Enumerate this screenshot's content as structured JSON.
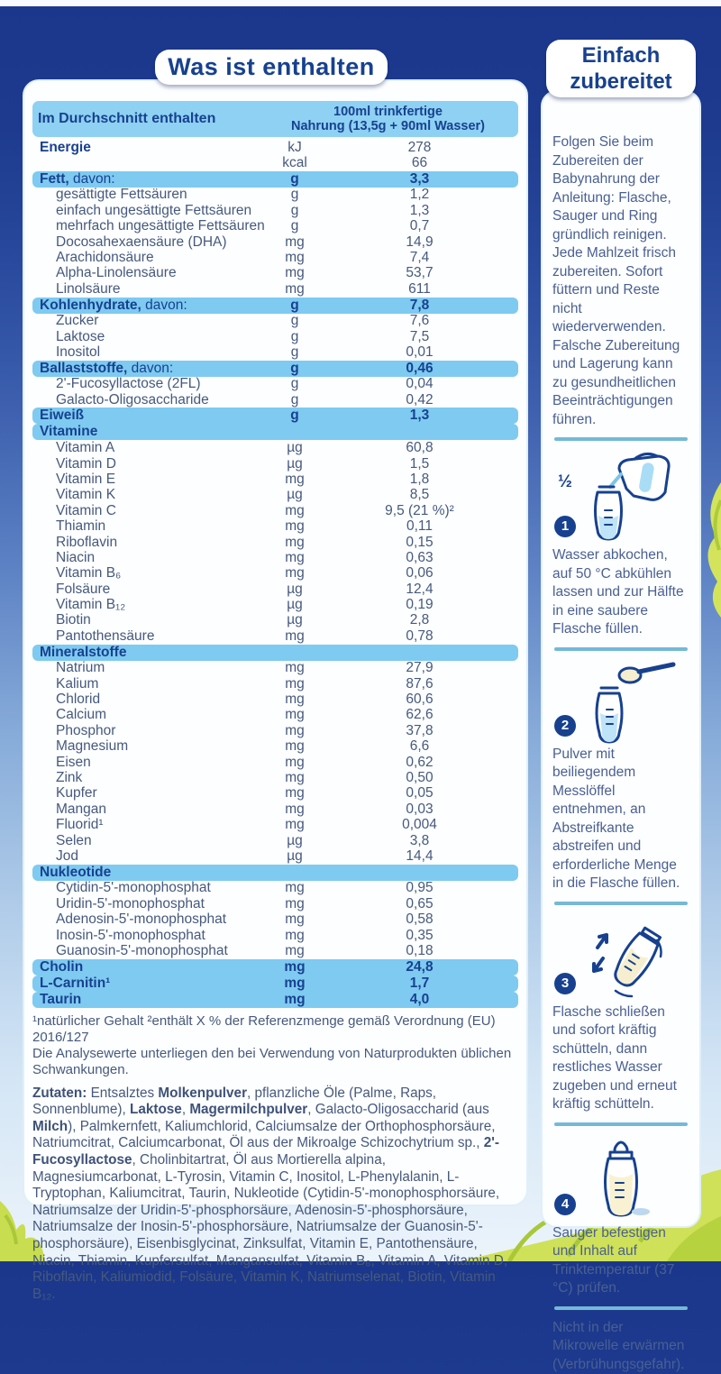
{
  "titles": {
    "left": "Was ist enthalten",
    "right_line1": "Einfach",
    "right_line2": "zubereitet"
  },
  "colors": {
    "brand_navy": "#17418f",
    "header_bar": "#8ed1f3",
    "section_bar": "#7ecaf1",
    "body_text": "#46597d",
    "divider": "#74b9d6",
    "grass_green": "#c3d845",
    "background_top": "#1b378b"
  },
  "table": {
    "header": {
      "col_label": "Im Durchschnitt enthalten",
      "col_value_line1": "100ml trinkfertige",
      "col_value_line2": "Nahrung (13,5g + 90ml Wasser)"
    },
    "rows": [
      {
        "style": "plain",
        "label_bold": "Energie",
        "unit": "kJ",
        "value": "278"
      },
      {
        "style": "plain",
        "label": "",
        "unit": "kcal",
        "value": "66"
      },
      {
        "style": "section",
        "label_bold": "Fett,",
        "label_rest": " davon:",
        "unit": "g",
        "value": "3,3"
      },
      {
        "style": "sub",
        "label": "gesättigte Fettsäuren",
        "unit": "g",
        "value": "1,2"
      },
      {
        "style": "sub",
        "label": "einfach ungesättigte Fettsäuren",
        "unit": "g",
        "value": "1,3"
      },
      {
        "style": "sub",
        "label": "mehrfach ungesättigte Fettsäuren",
        "unit": "g",
        "value": "0,7"
      },
      {
        "style": "sub",
        "label": "Docosahexaensäure (DHA)",
        "unit": "mg",
        "value": "14,9"
      },
      {
        "style": "sub",
        "label": "Arachidonsäure",
        "unit": "mg",
        "value": "7,4"
      },
      {
        "style": "sub",
        "label": "Alpha-Linolensäure",
        "unit": "mg",
        "value": "53,7"
      },
      {
        "style": "sub",
        "label": "Linolsäure",
        "unit": "mg",
        "value": "611"
      },
      {
        "style": "section",
        "label_bold": "Kohlenhydrate,",
        "label_rest": " davon:",
        "unit": "g",
        "value": "7,8"
      },
      {
        "style": "sub",
        "label": "Zucker",
        "unit": "g",
        "value": "7,6"
      },
      {
        "style": "sub",
        "label": "Laktose",
        "unit": "g",
        "value": "7,5"
      },
      {
        "style": "sub",
        "label": "Inositol",
        "unit": "g",
        "value": "0,01"
      },
      {
        "style": "section",
        "label_bold": "Ballaststoffe,",
        "label_rest": " davon:",
        "unit": "g",
        "value": "0,46"
      },
      {
        "style": "sub",
        "label": "2'-Fucosyllactose (2FL)",
        "unit": "g",
        "value": "0,04"
      },
      {
        "style": "sub",
        "label": "Galacto-Oligosaccharide",
        "unit": "g",
        "value": "0,42"
      },
      {
        "style": "section",
        "label_bold": "Eiweiß",
        "unit": "g",
        "value": "1,3"
      },
      {
        "style": "section",
        "label_bold": "Vitamine",
        "unit": "",
        "value": ""
      },
      {
        "style": "sub",
        "label": "Vitamin A",
        "unit": "µg",
        "value": "60,8"
      },
      {
        "style": "sub",
        "label": "Vitamin D",
        "unit": "µg",
        "value": "1,5"
      },
      {
        "style": "sub",
        "label": "Vitamin E",
        "unit": "mg",
        "value": "1,8"
      },
      {
        "style": "sub",
        "label": "Vitamin K",
        "unit": "µg",
        "value": "8,5"
      },
      {
        "style": "sub",
        "label": "Vitamin C",
        "unit": "mg",
        "value": "9,5 (21 %)²"
      },
      {
        "style": "sub",
        "label": "Thiamin",
        "unit": "mg",
        "value": "0,11"
      },
      {
        "style": "sub",
        "label": "Riboflavin",
        "unit": "mg",
        "value": "0,15"
      },
      {
        "style": "sub",
        "label": "Niacin",
        "unit": "mg",
        "value": "0,63"
      },
      {
        "style": "sub",
        "label": "Vitamin B₆",
        "unit": "mg",
        "value": "0,06"
      },
      {
        "style": "sub",
        "label": "Folsäure",
        "unit": "µg",
        "value": "12,4"
      },
      {
        "style": "sub",
        "label": "Vitamin B₁₂",
        "unit": "µg",
        "value": "0,19"
      },
      {
        "style": "sub",
        "label": "Biotin",
        "unit": "µg",
        "value": "2,8"
      },
      {
        "style": "sub",
        "label": "Pantothensäure",
        "unit": "mg",
        "value": "0,78"
      },
      {
        "style": "section",
        "label_bold": "Mineralstoffe",
        "unit": "",
        "value": ""
      },
      {
        "style": "sub",
        "label": "Natrium",
        "unit": "mg",
        "value": "27,9"
      },
      {
        "style": "sub",
        "label": "Kalium",
        "unit": "mg",
        "value": "87,6"
      },
      {
        "style": "sub",
        "label": "Chlorid",
        "unit": "mg",
        "value": "60,6"
      },
      {
        "style": "sub",
        "label": "Calcium",
        "unit": "mg",
        "value": "62,6"
      },
      {
        "style": "sub",
        "label": "Phosphor",
        "unit": "mg",
        "value": "37,8"
      },
      {
        "style": "sub",
        "label": "Magnesium",
        "unit": "mg",
        "value": "6,6"
      },
      {
        "style": "sub",
        "label": "Eisen",
        "unit": "mg",
        "value": "0,62"
      },
      {
        "style": "sub",
        "label": "Zink",
        "unit": "mg",
        "value": "0,50"
      },
      {
        "style": "sub",
        "label": "Kupfer",
        "unit": "mg",
        "value": "0,05"
      },
      {
        "style": "sub",
        "label": "Mangan",
        "unit": "mg",
        "value": "0,03"
      },
      {
        "style": "sub",
        "label": "Fluorid¹",
        "unit": "mg",
        "value": "0,004"
      },
      {
        "style": "sub",
        "label": "Selen",
        "unit": "µg",
        "value": "3,8"
      },
      {
        "style": "sub",
        "label": "Jod",
        "unit": "µg",
        "value": "14,4"
      },
      {
        "style": "section",
        "label_bold": "Nukleotide",
        "unit": "",
        "value": ""
      },
      {
        "style": "sub",
        "label": "Cytidin-5'-monophosphat",
        "unit": "mg",
        "value": "0,95"
      },
      {
        "style": "sub",
        "label": "Uridin-5'-monophosphat",
        "unit": "mg",
        "value": "0,65"
      },
      {
        "style": "sub",
        "label": "Adenosin-5'-monophosphat",
        "unit": "mg",
        "value": "0,58"
      },
      {
        "style": "sub",
        "label": "Inosin-5'-monophosphat",
        "unit": "mg",
        "value": "0,35"
      },
      {
        "style": "sub",
        "label": "Guanosin-5'-monophosphat",
        "unit": "mg",
        "value": "0,18"
      },
      {
        "style": "section",
        "label_bold": "Cholin",
        "unit": "mg",
        "value": "24,8"
      },
      {
        "style": "section",
        "label_bold": "L-Carnitin¹",
        "unit": "mg",
        "value": "1,7"
      },
      {
        "style": "section",
        "label_bold": "Taurin",
        "unit": "mg",
        "value": "4,0"
      }
    ]
  },
  "footnotes": {
    "line1": "¹natürlicher Gehalt  ²enthält X % der Referenzmenge gemäß Verordnung (EU) 2016/127",
    "line2": "Die Analysewerte unterliegen den bei Verwendung von Naturprodukten üblichen Schwankungen."
  },
  "ingredients": {
    "segments": [
      {
        "text": "Zutaten: ",
        "bold": true
      },
      {
        "text": "Entsalztes ",
        "bold": false
      },
      {
        "text": "Molkenpulver",
        "bold": true
      },
      {
        "text": ", pflanzliche Öle (Palme, Raps, Sonnenblume), ",
        "bold": false
      },
      {
        "text": "Laktose",
        "bold": true
      },
      {
        "text": ", ",
        "bold": false
      },
      {
        "text": "Magermilchpulver",
        "bold": true
      },
      {
        "text": ", Galacto-Oligosaccharid (aus ",
        "bold": false
      },
      {
        "text": "Milch",
        "bold": true
      },
      {
        "text": "), Palmkernfett, Kaliumchlorid, Calciumsalze der Orthophosphorsäure, Natriumcitrat, Calciumcarbonat, Öl aus der Mikroalge Schizochytrium sp., ",
        "bold": false
      },
      {
        "text": "2'-Fucosyllactose",
        "bold": true
      },
      {
        "text": ", Cholinbitartrat, Öl aus Mortierella alpina, Magnesiumcarbonat, L-Tyrosin, Vitamin C, Inositol, L-Phenylalanin, L-Tryptophan, Kaliumcitrat, Taurin, Nukleotide (Cytidin-5'-monophosphorsäure, Natriumsalze der Uridin-5'-phosphorsäure, Adenosin-5'-phosphorsäure, Natriumsalze der Inosin-5'-phosphorsäure, Natriumsalze der Guanosin-5'-phosphorsäure), Eisenbisglycinat, Zinksulfat, Vitamin E, Pantothensäure, Niacin, Thiamin, Kupfersulfat, Mangansulfat, Vitamin B₆, Vitamin A, Vitamin D, Riboflavin, Kaliumiodid, Folsäure, Vitamin K, Natriumselenat, Biotin, Vitamin B₁₂.",
        "bold": false
      }
    ]
  },
  "sidebar": {
    "intro": "Folgen Sie beim Zubereiten der Babynahrung der Anleitung: Flasche, Sauger und Ring gründlich reinigen. Jede Mahlzeit frisch zubereiten. Sofort füttern und Reste nicht wiederverwenden. Falsche Zubereitung und Lagerung kann zu gesundheitlichen Beeinträchtigungen führen.",
    "steps": [
      {
        "num": "1",
        "fraction": "½",
        "icon": "kettle-pour-icon",
        "text": "Wasser abkochen, auf 50 °C abkühlen lassen und zur Hälfte in eine saubere Flasche füllen."
      },
      {
        "num": "2",
        "icon": "scoop-bottle-icon",
        "text": "Pulver mit beiliegendem Messlöffel entnehmen, an Abstreifkante abstreifen und erforderliche Menge in die Flasche füllen."
      },
      {
        "num": "3",
        "icon": "shake-bottle-icon",
        "text": "Flasche schließen und sofort kräftig schütteln, dann restliches Wasser zugeben und erneut kräftig schütteln."
      },
      {
        "num": "4",
        "icon": "teat-bottle-icon",
        "text": "Sauger befestigen und Inhalt auf Trinktemperatur (37 °C) prüfen."
      }
    ],
    "note": "Nicht in der Mikrowelle erwärmen (Verbrühungsgefahr)."
  }
}
